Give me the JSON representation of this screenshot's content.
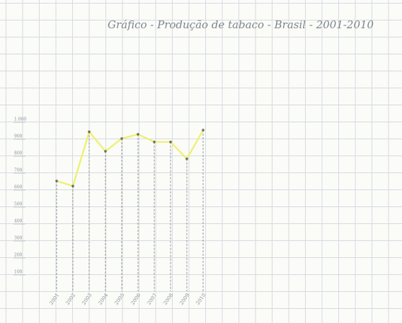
{
  "chart_data": {
    "type": "line",
    "title": "Gráfico - Produção de tabaco - Brasil - 2001-2010",
    "categories": [
      "2001",
      "2002",
      "2003",
      "2004",
      "2005",
      "2006",
      "2007",
      "2008",
      "2009",
      "2010"
    ],
    "values": [
      650,
      620,
      940,
      825,
      900,
      925,
      880,
      880,
      780,
      950
    ],
    "color": "#eef06a",
    "ylim": [
      0,
      1100
    ],
    "yticks": [
      100,
      200,
      300,
      400,
      500,
      600,
      700,
      800,
      900,
      {
        "value": 1000,
        "label": "1.000"
      }
    ]
  }
}
